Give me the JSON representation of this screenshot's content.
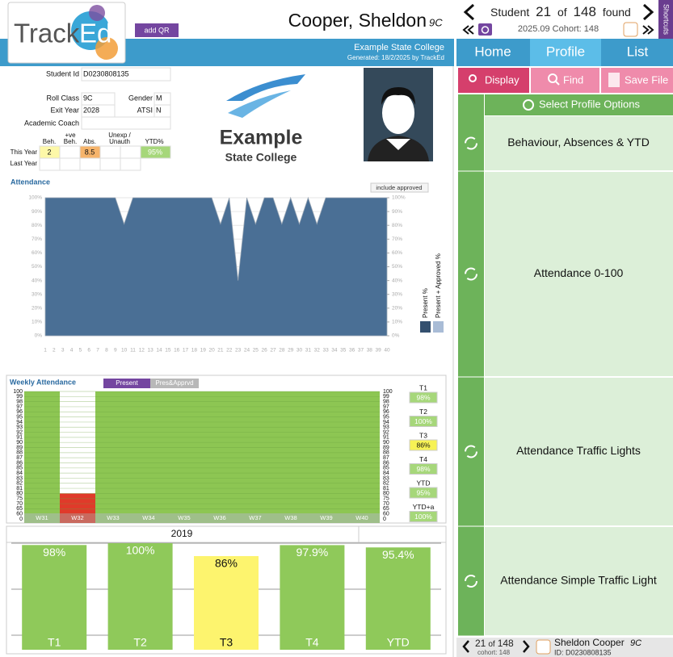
{
  "header": {
    "logo": [
      "Track",
      "Ed"
    ],
    "add_qr": "add QR",
    "student_name": "Cooper, Sheldon",
    "student_class": "9C",
    "school": "Example State College",
    "generated": "Generated: 18/2/2025 by TrackEd"
  },
  "navigator": {
    "label": "Student",
    "index": 21,
    "of": "of",
    "total": 148,
    "found": "found",
    "cohort": "2025.09 Cohort: 148",
    "shortcuts": "Shortcuts"
  },
  "tabs": [
    "Home",
    "Profile",
    "List"
  ],
  "actions": [
    "Display",
    "Find",
    "Save File"
  ],
  "profile_options": {
    "title": "Select Profile Options",
    "items": [
      "Behaviour, Absences & YTD",
      "Attendance 0-100",
      "Attendance Traffic Lights",
      "Attendance Simple Traffic Light"
    ]
  },
  "footer": {
    "index": 21,
    "of": "of",
    "total": 148,
    "cohort": "cohort: 148",
    "name": "Sheldon Cooper",
    "class": "9C",
    "id": "ID: D0230808135"
  },
  "student": {
    "fields": [
      {
        "label": "Student Id",
        "value": "D0230808135"
      },
      {
        "label": "Roll Class",
        "value": "9C"
      },
      {
        "label": "Gender",
        "value": "M"
      },
      {
        "label": "Exit Year",
        "value": "2028"
      },
      {
        "label": "ATSI",
        "value": "N"
      },
      {
        "label": "Academic Coach"
      }
    ],
    "summary": {
      "headers": [
        [
          "Beh."
        ],
        [
          "+ve",
          "Beh."
        ],
        [
          "Abs."
        ],
        [
          "Unexp /",
          "Unauth"
        ],
        [
          "YTD%"
        ]
      ],
      "this_year": {
        "label": "This Year",
        "beh": 2,
        "abs": 8.5,
        "ytd": "95%"
      },
      "last_year": {
        "label": "Last Year"
      }
    }
  },
  "school_logo": [
    "Example",
    "State College"
  ],
  "attendance_chart": {
    "type": "area",
    "title": "Attendance",
    "button": "include approved",
    "color": "#4a6f95",
    "x": [
      1,
      2,
      3,
      4,
      5,
      6,
      7,
      8,
      9,
      10,
      11,
      12,
      13,
      14,
      15,
      16,
      17,
      18,
      19,
      20,
      21,
      22,
      23,
      24,
      25,
      26,
      27,
      28,
      29,
      30,
      31,
      32,
      33,
      34,
      35,
      36,
      37,
      38,
      39,
      40
    ],
    "values": [
      100,
      100,
      100,
      100,
      100,
      100,
      100,
      100,
      100,
      81,
      100,
      100,
      100,
      100,
      100,
      100,
      100,
      100,
      100,
      100,
      81,
      100,
      40,
      100,
      81,
      100,
      100,
      81,
      100,
      81,
      100,
      81,
      100,
      100,
      100,
      100,
      100,
      100,
      100,
      100
    ],
    "xlim": [
      1,
      40
    ],
    "ylim": [
      0,
      100
    ],
    "yticks": [
      {
        "value": 0,
        "label": "0%"
      },
      {
        "value": 10,
        "label": "10%"
      },
      {
        "value": 20,
        "label": "20%"
      },
      {
        "value": 30,
        "label": "30%"
      },
      {
        "value": 40,
        "label": "40%"
      },
      {
        "value": 50,
        "label": "50%"
      },
      {
        "value": 60,
        "label": "60%"
      },
      {
        "value": 70,
        "label": "70%"
      },
      {
        "value": 80,
        "label": "80%"
      },
      {
        "value": 90,
        "label": "90%"
      },
      {
        "value": 100,
        "label": "100%"
      }
    ],
    "legend": [
      {
        "name": "Present %",
        "color": "#34506f"
      },
      {
        "name": "Present + Approved %",
        "color": "#a9bcd6"
      }
    ]
  },
  "weekly_chart": {
    "type": "bar",
    "title": "Weekly Attendance",
    "toggles": [
      "Present",
      "Pres&Apprvd"
    ],
    "categories": [
      "W31",
      "W32",
      "W33",
      "W34",
      "W35",
      "W36",
      "W37",
      "W38",
      "W39",
      "W40"
    ],
    "values": [
      100,
      80,
      100,
      100,
      100,
      100,
      100,
      100,
      100,
      100
    ],
    "colors": [
      "#8dc653",
      "#e03a2a",
      "#8dc653",
      "#8dc653",
      "#8dc653",
      "#8dc653",
      "#8dc653",
      "#8dc653",
      "#8dc653",
      "#8dc653"
    ],
    "ylim": [
      0,
      100
    ],
    "yticks": [
      100,
      99,
      98,
      97,
      96,
      95,
      94,
      93,
      92,
      91,
      90,
      89,
      88,
      87,
      86,
      85,
      84,
      83,
      82,
      81,
      80,
      75,
      70,
      65,
      60,
      0
    ],
    "terms": [
      {
        "label": "T1",
        "value": "98%",
        "color": "#a6d77a"
      },
      {
        "label": "T2",
        "value": "100%",
        "color": "#a6d77a"
      },
      {
        "label": "T3",
        "value": "86%",
        "color": "#f7f255"
      },
      {
        "label": "T4",
        "value": "98%",
        "color": "#a6d77a"
      },
      {
        "label": "YTD",
        "value": "95%",
        "color": "#a6d77a"
      },
      {
        "label": "YTD+a",
        "value": "100%",
        "color": "#a6d77a"
      }
    ]
  },
  "term_chart": {
    "type": "bar",
    "title": "2019",
    "categories": [
      "T1",
      "T2",
      "T3",
      "T4",
      "YTD"
    ],
    "values": [
      98,
      100,
      86,
      97.9,
      95.4
    ],
    "value_labels": [
      "98%",
      "100%",
      "86%",
      "97.9%",
      "95.4%"
    ],
    "colors": [
      "#8fc95a",
      "#8fc95a",
      "#fdf46e",
      "#8fc95a",
      "#8fc95a"
    ],
    "ylim": [
      0,
      100
    ],
    "yticks": [
      0,
      50,
      100
    ]
  }
}
